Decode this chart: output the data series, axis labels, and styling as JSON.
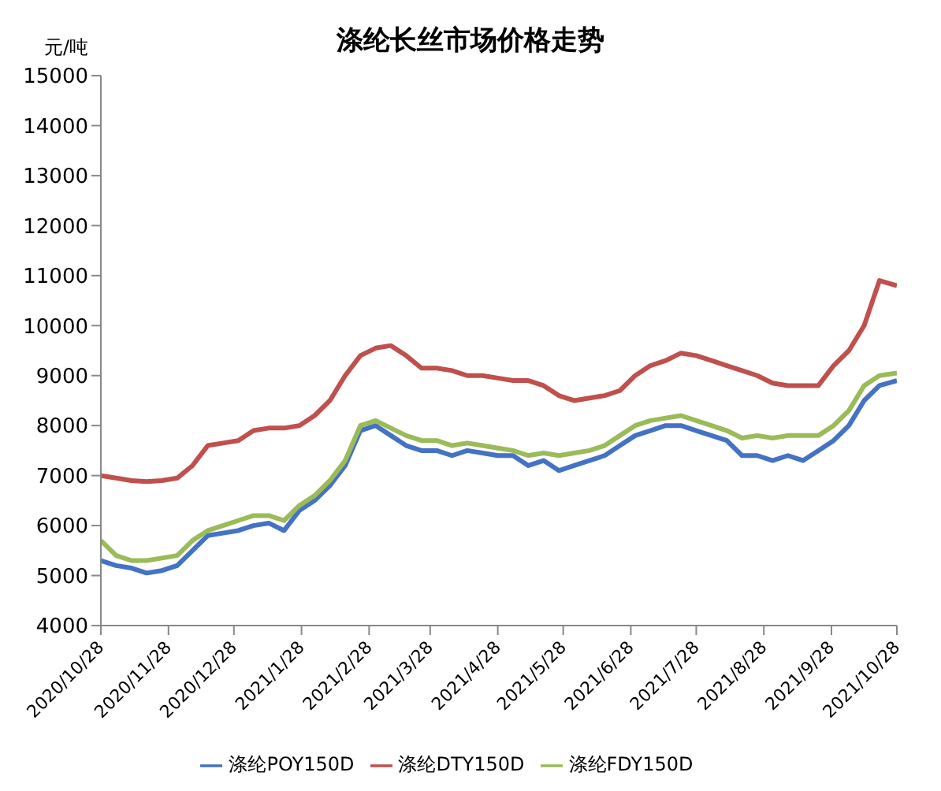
{
  "chart_data": {
    "type": "line",
    "title": "涤纶长丝市场价格走势",
    "ylabel": "元/吨",
    "x": [
      "2020-10-28",
      "2020-11-04",
      "2020-11-11",
      "2020-11-18",
      "2020-11-25",
      "2020-12-02",
      "2020-12-09",
      "2020-12-16",
      "2020-12-23",
      "2020-12-30",
      "2021-01-06",
      "2021-01-13",
      "2021-01-20",
      "2021-01-27",
      "2021-02-03",
      "2021-02-10",
      "2021-02-17",
      "2021-02-24",
      "2021-03-03",
      "2021-03-10",
      "2021-03-17",
      "2021-03-24",
      "2021-03-31",
      "2021-04-07",
      "2021-04-14",
      "2021-04-21",
      "2021-04-28",
      "2021-05-05",
      "2021-05-12",
      "2021-05-19",
      "2021-05-26",
      "2021-06-02",
      "2021-06-09",
      "2021-06-16",
      "2021-06-23",
      "2021-06-30",
      "2021-07-07",
      "2021-07-14",
      "2021-07-21",
      "2021-07-28",
      "2021-08-04",
      "2021-08-11",
      "2021-08-18",
      "2021-08-25",
      "2021-09-01",
      "2021-09-08",
      "2021-09-15",
      "2021-09-22",
      "2021-09-29",
      "2021-10-06",
      "2021-10-13",
      "2021-10-20",
      "2021-10-28"
    ],
    "series": [
      {
        "name": "涤纶POY150D",
        "color": "#4472c4",
        "values": [
          5300,
          5200,
          5150,
          5050,
          5100,
          5200,
          5500,
          5800,
          5850,
          5900,
          6000,
          6050,
          5900,
          6300,
          6500,
          6800,
          7200,
          7900,
          8000,
          7800,
          7600,
          7500,
          7500,
          7400,
          7500,
          7450,
          7400,
          7400,
          7200,
          7300,
          7100,
          7200,
          7300,
          7400,
          7600,
          7800,
          7900,
          8000,
          8000,
          7900,
          7800,
          7700,
          7400,
          7400,
          7300,
          7400,
          7300,
          7500,
          7700,
          8000,
          8500,
          8800,
          8900
        ]
      },
      {
        "name": "涤纶DTY150D",
        "color": "#c0504d",
        "values": [
          7000,
          6950,
          6900,
          6880,
          6900,
          6950,
          7200,
          7600,
          7650,
          7700,
          7900,
          7950,
          7950,
          8000,
          8200,
          8500,
          9000,
          9400,
          9550,
          9600,
          9400,
          9150,
          9150,
          9100,
          9000,
          9000,
          8950,
          8900,
          8900,
          8800,
          8600,
          8500,
          8550,
          8600,
          8700,
          9000,
          9200,
          9300,
          9450,
          9400,
          9300,
          9200,
          9100,
          9000,
          8850,
          8800,
          8800,
          8800,
          9200,
          9500,
          10000,
          10900,
          10800
        ]
      },
      {
        "name": "涤纶FDY150D",
        "color": "#9bbb59",
        "values": [
          5700,
          5400,
          5300,
          5300,
          5350,
          5400,
          5700,
          5900,
          6000,
          6100,
          6200,
          6200,
          6100,
          6400,
          6600,
          6900,
          7300,
          8000,
          8100,
          7950,
          7800,
          7700,
          7700,
          7600,
          7650,
          7600,
          7550,
          7500,
          7400,
          7450,
          7400,
          7450,
          7500,
          7600,
          7800,
          8000,
          8100,
          8150,
          8200,
          8100,
          8000,
          7900,
          7750,
          7800,
          7750,
          7800,
          7800,
          7800,
          8000,
          8300,
          8800,
          9000,
          9050
        ]
      }
    ],
    "xlim": [
      "2020-10-28",
      "2021-10-28"
    ],
    "xticks": [
      {
        "value": "2020-10-28",
        "label": "2020/10/28"
      },
      {
        "value": "2020-11-28",
        "label": "2020/11/28"
      },
      {
        "value": "2020-12-28",
        "label": "2020/12/28"
      },
      {
        "value": "2021-01-28",
        "label": "2021/1/28"
      },
      {
        "value": "2021-02-28",
        "label": "2021/2/28"
      },
      {
        "value": "2021-03-28",
        "label": "2021/3/28"
      },
      {
        "value": "2021-04-28",
        "label": "2021/4/28"
      },
      {
        "value": "2021-05-28",
        "label": "2021/5/28"
      },
      {
        "value": "2021-06-28",
        "label": "2021/6/28"
      },
      {
        "value": "2021-07-28",
        "label": "2021/7/28"
      },
      {
        "value": "2021-08-28",
        "label": "2021/8/28"
      },
      {
        "value": "2021-09-28",
        "label": "2021/9/28"
      },
      {
        "value": "2021-10-28",
        "label": "2021/10/28"
      }
    ],
    "ylim": [
      4000,
      15000
    ],
    "yticks": [
      4000,
      5000,
      6000,
      7000,
      8000,
      9000,
      10000,
      11000,
      12000,
      13000,
      14000,
      15000
    ],
    "grid": false,
    "legend": "bottom",
    "marker": "none",
    "line_style": "solid"
  }
}
